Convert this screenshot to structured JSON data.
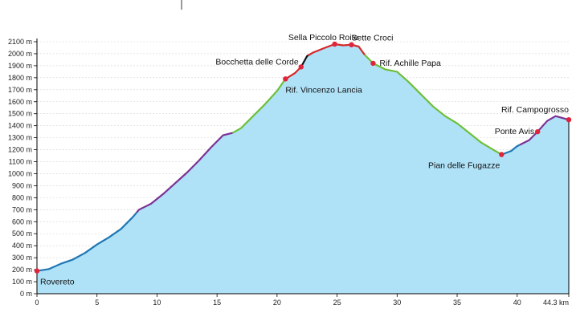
{
  "chart_data": {
    "type": "area",
    "xlim": [
      0,
      44.3
    ],
    "ylim": [
      0,
      2100
    ],
    "x_ticks": [
      0,
      5,
      10,
      15,
      20,
      25,
      30,
      35,
      40,
      44.3
    ],
    "x_tick_labels": [
      "0",
      "5",
      "10",
      "15",
      "20",
      "25",
      "30",
      "35",
      "40",
      "44.3 km"
    ],
    "y_ticks": [
      0,
      100,
      200,
      300,
      400,
      500,
      600,
      700,
      800,
      900,
      1000,
      1100,
      1200,
      1300,
      1400,
      1500,
      1600,
      1700,
      1800,
      1900,
      2000,
      2100
    ],
    "y_tick_labels": [
      "0 m",
      "100 m",
      "200 m",
      "300 m",
      "400 m",
      "500 m",
      "600 m",
      "700 m",
      "800 m",
      "900 m",
      "1000 m",
      "1100 m",
      "1200 m",
      "1300 m",
      "1400 m",
      "1500 m",
      "1600 m",
      "1700 m",
      "1800 m",
      "1900 m",
      "2000 m",
      "2100 m"
    ],
    "grid": true,
    "fill_color": "#b0e2f7",
    "profile": [
      [
        0,
        190
      ],
      [
        1,
        205
      ],
      [
        2,
        250
      ],
      [
        3,
        285
      ],
      [
        4,
        340
      ],
      [
        5,
        410
      ],
      [
        6,
        470
      ],
      [
        7,
        540
      ],
      [
        8,
        640
      ],
      [
        8.5,
        700
      ],
      [
        9.5,
        750
      ],
      [
        10.5,
        830
      ],
      [
        11.5,
        920
      ],
      [
        12.5,
        1010
      ],
      [
        13.5,
        1110
      ],
      [
        14.5,
        1220
      ],
      [
        15.5,
        1320
      ],
      [
        16.3,
        1340
      ],
      [
        17,
        1380
      ],
      [
        18,
        1480
      ],
      [
        19,
        1580
      ],
      [
        20,
        1690
      ],
      [
        20.7,
        1790
      ],
      [
        21.5,
        1840
      ],
      [
        22,
        1890
      ],
      [
        22.5,
        1980
      ],
      [
        23,
        2010
      ],
      [
        24,
        2050
      ],
      [
        24.8,
        2080
      ],
      [
        25.5,
        2070
      ],
      [
        26.2,
        2075
      ],
      [
        26.8,
        2060
      ],
      [
        27.3,
        1990
      ],
      [
        28,
        1920
      ],
      [
        29,
        1870
      ],
      [
        30,
        1850
      ],
      [
        31,
        1760
      ],
      [
        32,
        1660
      ],
      [
        33,
        1560
      ],
      [
        34,
        1480
      ],
      [
        35,
        1420
      ],
      [
        36,
        1340
      ],
      [
        37,
        1260
      ],
      [
        38,
        1200
      ],
      [
        38.7,
        1160
      ],
      [
        39.5,
        1190
      ],
      [
        40,
        1230
      ],
      [
        41,
        1280
      ],
      [
        41.7,
        1350
      ],
      [
        42.5,
        1440
      ],
      [
        43.2,
        1480
      ],
      [
        44.3,
        1450
      ]
    ],
    "segments": [
      {
        "from": 0,
        "to": 8.3,
        "color": "#1f77b4"
      },
      {
        "from": 8.3,
        "to": 16.3,
        "color": "#7b3294"
      },
      {
        "from": 16.3,
        "to": 20.7,
        "color": "#6dbf3a"
      },
      {
        "from": 20.7,
        "to": 22.0,
        "color": "#d62728"
      },
      {
        "from": 22.0,
        "to": 22.6,
        "color": "#111111"
      },
      {
        "from": 22.6,
        "to": 27.3,
        "color": "#d62728"
      },
      {
        "from": 27.3,
        "to": 38.7,
        "color": "#6dbf3a"
      },
      {
        "from": 38.7,
        "to": 40.2,
        "color": "#1f77b4"
      },
      {
        "from": 40.2,
        "to": 44.3,
        "color": "#7b3294"
      }
    ],
    "points": [
      {
        "name": "Rovereto",
        "x": 0,
        "y": 190
      },
      {
        "name": "Rif. Vincenzo Lancia",
        "x": 20.7,
        "y": 1790
      },
      {
        "name": "Bocchetta delle Corde",
        "x": 22.0,
        "y": 1890
      },
      {
        "name": "Sella Piccolo Roite",
        "x": 24.8,
        "y": 2080
      },
      {
        "name": "Sette Croci",
        "x": 26.2,
        "y": 2075
      },
      {
        "name": "Rif. Achille Papa",
        "x": 28.0,
        "y": 1920
      },
      {
        "name": "Pian delle Fugazze",
        "x": 38.7,
        "y": 1160
      },
      {
        "name": "Ponte Avis",
        "x": 41.7,
        "y": 1350
      },
      {
        "name": "Rif. Campogrosso",
        "x": 44.3,
        "y": 1450
      }
    ],
    "point_color": "#e0243a"
  }
}
